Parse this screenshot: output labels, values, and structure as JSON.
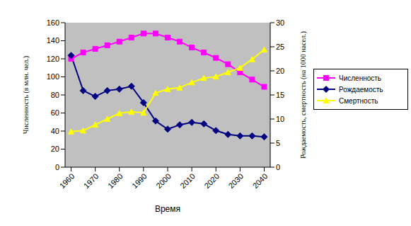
{
  "chart_data": {
    "type": "line",
    "x_label": "Время",
    "y_label": "Численность (в млн. чел.)",
    "y2_label": "Рождаемость, смертность (на 1000 насел.)",
    "x": [
      1960,
      1965,
      1970,
      1975,
      1980,
      1985,
      1990,
      1995,
      2000,
      2005,
      2010,
      2015,
      2020,
      2025,
      2030,
      2035,
      2040
    ],
    "xlim": [
      1957.5,
      2042.5
    ],
    "xticks": [
      1960,
      1970,
      1980,
      1990,
      2000,
      2010,
      2020,
      2030,
      2040
    ],
    "ylim": [
      0,
      160
    ],
    "yticks": [
      0,
      20,
      40,
      60,
      80,
      100,
      120,
      140,
      160
    ],
    "y2lim": [
      0,
      30
    ],
    "y2ticks": [
      0,
      5,
      10,
      15,
      20,
      25,
      30
    ],
    "grid": false,
    "legend": "right",
    "series": [
      {
        "name": "Численность",
        "color": "#ff00ff",
        "marker": "square",
        "axis": "y",
        "values": [
          120,
          127,
          131,
          135,
          139,
          143.5,
          148,
          148,
          143.5,
          139,
          132.5,
          127,
          121,
          114,
          105,
          97,
          89
        ]
      },
      {
        "name": "Рождаемость",
        "color": "#000080",
        "marker": "diamond",
        "axis": "y2",
        "values": [
          23.2,
          15.9,
          14.7,
          15.9,
          16.2,
          16.8,
          13.4,
          9.6,
          7.9,
          8.8,
          9.3,
          9.0,
          7.6,
          6.8,
          6.5,
          6.5,
          6.3
        ]
      },
      {
        "name": "Смертность",
        "color": "#ffff00",
        "marker": "triangle",
        "axis": "y2",
        "values": [
          7.4,
          7.6,
          8.8,
          10,
          11.2,
          11.5,
          11.3,
          15.4,
          16.2,
          16.5,
          17.6,
          18.5,
          18.8,
          19.7,
          20.6,
          22.4,
          24.4
        ]
      }
    ]
  }
}
